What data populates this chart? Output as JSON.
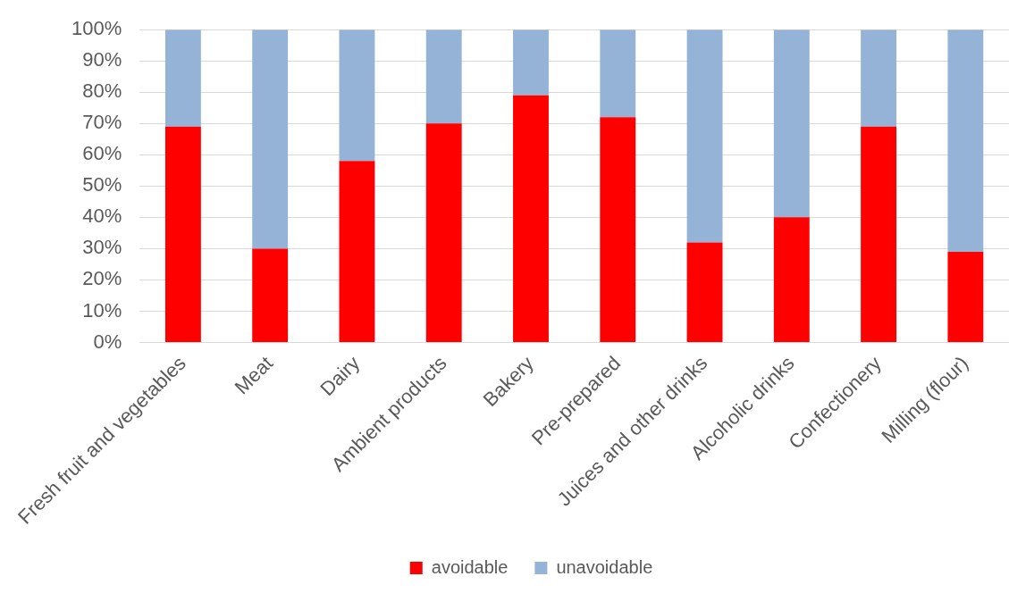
{
  "chart_data": {
    "type": "bar",
    "stacked": true,
    "categories": [
      "Fresh fruit and vegetables",
      "Meat",
      "Dairy",
      "Ambient products",
      "Bakery",
      "Pre-prepared",
      "Juices and other drinks",
      "Alcoholic drinks",
      "Confectionery",
      "Milling (flour)"
    ],
    "series": [
      {
        "name": "avoidable",
        "color": "#ff0000",
        "values": [
          69,
          30,
          58,
          70,
          79,
          72,
          32,
          40,
          69,
          29
        ]
      },
      {
        "name": "unavoidable",
        "color": "#95b3d7",
        "values": [
          31,
          70,
          42,
          30,
          21,
          28,
          68,
          60,
          31,
          71
        ]
      }
    ],
    "ylim": [
      0,
      100
    ],
    "yticks": [
      {
        "value": 0,
        "label": "0%"
      },
      {
        "value": 10,
        "label": "10%"
      },
      {
        "value": 20,
        "label": "20%"
      },
      {
        "value": 30,
        "label": "30%"
      },
      {
        "value": 40,
        "label": "40%"
      },
      {
        "value": 50,
        "label": "50%"
      },
      {
        "value": 60,
        "label": "60%"
      },
      {
        "value": 70,
        "label": "70%"
      },
      {
        "value": 80,
        "label": "80%"
      },
      {
        "value": 90,
        "label": "90%"
      },
      {
        "value": 100,
        "label": "100%"
      }
    ],
    "grid": "y",
    "legend": "bottom"
  }
}
